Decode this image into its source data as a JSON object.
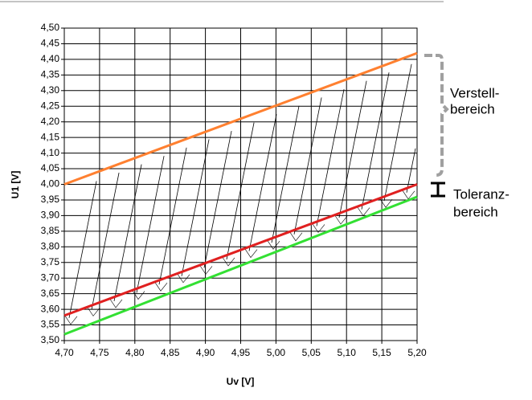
{
  "chart_data": {
    "type": "line",
    "x_label": "Uv [V]",
    "y_label": "U1 [V]",
    "x": [
      4.7,
      5.2
    ],
    "series": [
      {
        "color": "#ff8030",
        "values": [
          4.0,
          4.42
        ]
      },
      {
        "color": "#e02020",
        "values": [
          3.58,
          4.0
        ]
      },
      {
        "color": "#33e033",
        "values": [
          3.52,
          3.96
        ]
      }
    ],
    "xlim": [
      4.7,
      5.2
    ],
    "xticks": [
      {
        "value": 4.7,
        "label": "4,70"
      },
      {
        "value": 4.75,
        "label": "4,75"
      },
      {
        "value": 4.8,
        "label": "4,80"
      },
      {
        "value": 4.85,
        "label": "4,85"
      },
      {
        "value": 4.9,
        "label": "4,90"
      },
      {
        "value": 4.95,
        "label": "4,95"
      },
      {
        "value": 5.0,
        "label": "5,00"
      },
      {
        "value": 5.05,
        "label": "5,05"
      },
      {
        "value": 5.1,
        "label": "5,10"
      },
      {
        "value": 5.15,
        "label": "5,15"
      },
      {
        "value": 5.2,
        "label": "5,20"
      }
    ],
    "ylim": [
      3.5,
      4.5
    ],
    "yticks": [
      {
        "value": 3.5,
        "label": "3,50"
      },
      {
        "value": 3.55,
        "label": "3,55"
      },
      {
        "value": 3.6,
        "label": "3,60"
      },
      {
        "value": 3.65,
        "label": "3,65"
      },
      {
        "value": 3.7,
        "label": "3,70"
      },
      {
        "value": 3.75,
        "label": "3,75"
      },
      {
        "value": 3.8,
        "label": "3,80"
      },
      {
        "value": 3.85,
        "label": "3,85"
      },
      {
        "value": 3.9,
        "label": "3,90"
      },
      {
        "value": 3.95,
        "label": "3,95"
      },
      {
        "value": 4.0,
        "label": "4,00"
      },
      {
        "value": 4.05,
        "label": "4,05"
      },
      {
        "value": 4.1,
        "label": "4,10"
      },
      {
        "value": 4.15,
        "label": "4,15"
      },
      {
        "value": 4.2,
        "label": "4,20"
      },
      {
        "value": 4.25,
        "label": "4,25"
      },
      {
        "value": 4.3,
        "label": "4,30"
      },
      {
        "value": 4.35,
        "label": "4,35"
      },
      {
        "value": 4.4,
        "label": "4,40"
      },
      {
        "value": 4.45,
        "label": "4,45"
      },
      {
        "value": 4.5,
        "label": "4,50"
      }
    ],
    "grid": true,
    "annotations": [
      {
        "lines": [
          "Verstell-",
          "bereich"
        ],
        "color": "#a0a0a0"
      },
      {
        "lines": [
          "Toleranz-",
          "bereich"
        ],
        "color": "#000000"
      }
    ]
  }
}
